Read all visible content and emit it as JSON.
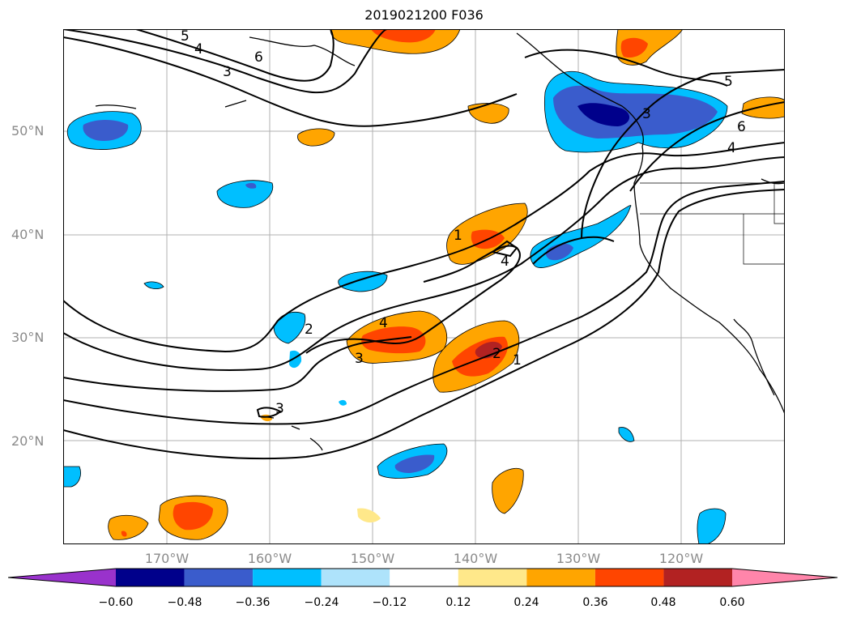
{
  "title": "2019021200 F036",
  "lat_labels": [
    "50°N",
    "40°N",
    "30°N",
    "20°N"
  ],
  "lon_labels": [
    "170°W",
    "160°W",
    "150°W",
    "140°W",
    "130°W",
    "120°W"
  ],
  "contour_labels": [
    "5",
    "4",
    "3",
    "6",
    "5",
    "6",
    "4",
    "3",
    "1",
    "4",
    "2",
    "4",
    "3",
    "2",
    "1",
    "3"
  ],
  "colorbar": {
    "ticks": [
      "−0.60",
      "−0.48",
      "−0.36",
      "−0.24",
      "−0.12",
      "0.12",
      "0.24",
      "0.36",
      "0.48",
      "0.60"
    ],
    "colors": [
      "#9932cc",
      "#00008b",
      "#3a5ccc",
      "#00bfff",
      "#aee3fb",
      "#ffffff",
      "#ffe88a",
      "#ffa500",
      "#ff4500",
      "#b22222",
      "#ff85aa"
    ]
  },
  "colors": {
    "neg_dark": "#00008b",
    "neg_mid": "#3a5ccc",
    "neg_light": "#00bfff",
    "neg_pale": "#aee3fb",
    "pos_pale": "#ffe88a",
    "pos_light": "#ffa500",
    "pos_mid": "#ff4500",
    "pos_dark": "#b22222"
  }
}
